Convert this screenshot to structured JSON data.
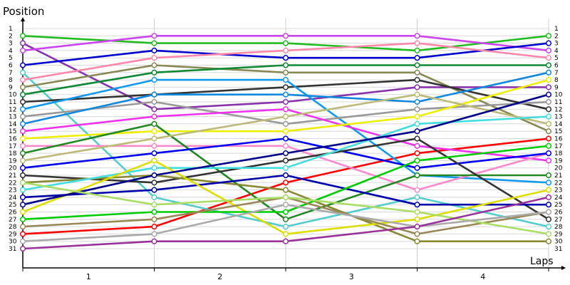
{
  "chart_data": {
    "type": "line",
    "ylabel": "Position",
    "xlabel": "Laps",
    "categories": [
      "1",
      "2",
      "3",
      "4"
    ],
    "x": [
      0,
      1,
      2,
      3,
      4
    ],
    "ylim": [
      1,
      31
    ],
    "y_inverted": true,
    "y_ticks": [
      1,
      2,
      3,
      4,
      5,
      6,
      7,
      8,
      9,
      10,
      11,
      12,
      13,
      14,
      15,
      16,
      17,
      18,
      19,
      20,
      21,
      22,
      23,
      24,
      25,
      26,
      27,
      28,
      29,
      30,
      31
    ],
    "grid": "horizontal",
    "series": [
      {
        "color": "#ff0000",
        "values": [
          29,
          28,
          22,
          18,
          16
        ]
      },
      {
        "color": "#22bb22",
        "values": [
          2,
          3,
          3,
          4,
          2
        ]
      },
      {
        "color": "#8833aa",
        "values": [
          3,
          12,
          11,
          9,
          9
        ]
      },
      {
        "color": "#cc44ee",
        "values": [
          4,
          2,
          2,
          2,
          4
        ]
      },
      {
        "color": "#0000cc",
        "values": [
          6,
          4,
          5,
          5,
          3
        ]
      },
      {
        "color": "#55cccc",
        "values": [
          7,
          24,
          28,
          24,
          28
        ]
      },
      {
        "color": "#ff88aa",
        "values": [
          8,
          5,
          4,
          3,
          5
        ]
      },
      {
        "color": "#888855",
        "values": [
          9,
          6,
          7,
          7,
          15
        ]
      },
      {
        "color": "#118833",
        "values": [
          10,
          7,
          6,
          6,
          6
        ]
      },
      {
        "color": "#333333",
        "values": [
          11,
          10,
          9,
          8,
          12
        ]
      },
      {
        "color": "#1199ee",
        "values": [
          12,
          8,
          8,
          21,
          22
        ]
      },
      {
        "color": "#999999",
        "values": [
          13,
          11,
          14,
          12,
          11
        ]
      },
      {
        "color": "#1188dd",
        "values": [
          14,
          10,
          10,
          11,
          7
        ]
      },
      {
        "color": "#ee33ee",
        "values": [
          15,
          13,
          12,
          17,
          19
        ]
      },
      {
        "color": "#eeee00",
        "values": [
          16,
          15,
          15,
          13,
          8
        ]
      },
      {
        "color": "#ff88cc",
        "values": [
          17,
          17,
          17,
          23,
          18
        ]
      },
      {
        "color": "#228822",
        "values": [
          18,
          14,
          27,
          21,
          21
        ]
      },
      {
        "color": "#bbbb77",
        "values": [
          19,
          16,
          13,
          10,
          14
        ]
      },
      {
        "color": "#0000ee",
        "values": [
          20,
          18,
          16,
          20,
          18
        ]
      },
      {
        "color": "#333333",
        "values": [
          21,
          22,
          19,
          16,
          27
        ]
      },
      {
        "color": "#888833",
        "values": [
          22,
          21,
          23,
          30,
          30
        ]
      },
      {
        "color": "#44dddd",
        "values": [
          23,
          20,
          20,
          14,
          13
        ]
      },
      {
        "color": "#0000aa",
        "values": [
          24,
          23,
          21,
          25,
          25
        ]
      },
      {
        "color": "#dddd00",
        "values": [
          26,
          19,
          29,
          27,
          23
        ]
      },
      {
        "color": "#000088",
        "values": [
          25,
          21,
          18,
          15,
          10
        ]
      },
      {
        "color": "#00cc00",
        "values": [
          27,
          26,
          26,
          19,
          17
        ]
      },
      {
        "color": "#998855",
        "values": [
          28,
          27,
          24,
          29,
          26
        ]
      },
      {
        "color": "#aadd66",
        "values": [
          22,
          25,
          24,
          26,
          29
        ]
      },
      {
        "color": "#aaaaaa",
        "values": [
          30,
          29,
          25,
          28,
          26
        ]
      },
      {
        "color": "#993399",
        "values": [
          31,
          30,
          30,
          28,
          24
        ]
      }
    ]
  }
}
